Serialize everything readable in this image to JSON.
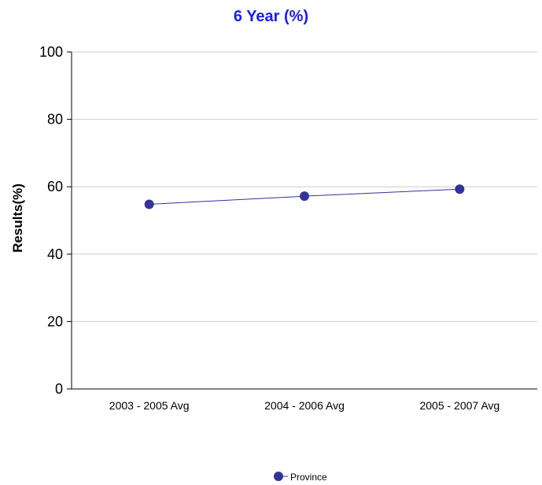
{
  "chart_data": {
    "type": "line",
    "title": "6 Year (%)",
    "xlabel": "",
    "ylabel": "Results(%)",
    "ylim": [
      0,
      100
    ],
    "yticks": [
      0,
      20,
      40,
      60,
      80,
      100
    ],
    "categories": [
      "2003 - 2005 Avg",
      "2004 - 2006 Avg",
      "2005 - 2007 Avg"
    ],
    "series": [
      {
        "name": "Province",
        "values": [
          54.8,
          57.2,
          59.3
        ],
        "color": "#333399"
      }
    ],
    "grid": true,
    "legend": "bottom-center",
    "title_color": "#1a1aff"
  }
}
